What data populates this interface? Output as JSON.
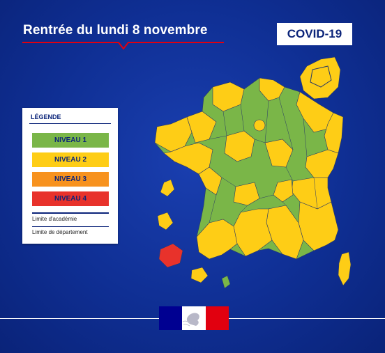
{
  "title": "Rentrée du lundi 8 novembre",
  "badge": "COVID-19",
  "legend": {
    "title": "LÉGENDE",
    "levels": [
      {
        "label": "NIVEAU 1",
        "color": "#7ab648"
      },
      {
        "label": "NIVEAU 2",
        "color": "#fecd16"
      },
      {
        "label": "NIVEAU 3",
        "color": "#f7921e"
      },
      {
        "label": "NIVEAU 4",
        "color": "#e8322b"
      }
    ],
    "academy_limit": "Limite d'académie",
    "department_limit": "Limite de département"
  },
  "colors": {
    "background": "#0f2f94",
    "accent_red": "#e1000f",
    "marianne_blue": "#000091"
  },
  "icons": [
    "marianne-logo-icon",
    "france-map-icon"
  ]
}
